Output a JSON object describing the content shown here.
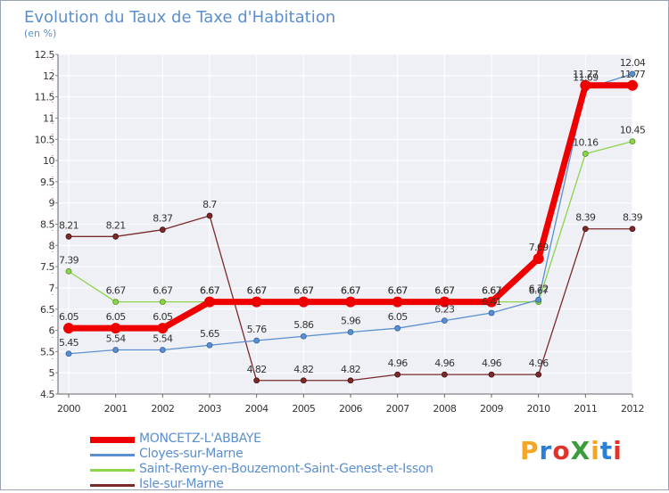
{
  "logo": {
    "text": "ProXiti",
    "letters": [
      "P",
      "r",
      "o",
      "X",
      "i",
      "t",
      "i"
    ],
    "letter_colors": [
      "#f5a623",
      "#2b7fd6",
      "#e0342b",
      "#3a9c3a",
      "#f5a623",
      "#2b7fd6",
      "#e0342b"
    ]
  },
  "chart_data": {
    "type": "line",
    "title": "Evolution du Taux de Taxe d'Habitation",
    "subtitle": "(en %)",
    "x": [
      "2000",
      "2001",
      "2002",
      "2003",
      "2004",
      "2005",
      "2006",
      "2007",
      "2008",
      "2009",
      "2010",
      "2011",
      "2012"
    ],
    "ylim": [
      4.5,
      12.5
    ],
    "yticks": [
      "4.5",
      "5",
      "5.5",
      "6",
      "6.5",
      "7",
      "7.5",
      "8",
      "8.5",
      "9",
      "9.5",
      "10",
      "10.5",
      "11",
      "11.5",
      "12",
      "12.5"
    ],
    "grid": true,
    "legend_position": "bottom-left",
    "series": [
      {
        "name": "MONCETZ-L'ABBAYE",
        "color": "#ee0000",
        "values": [
          6.05,
          6.05,
          6.05,
          6.67,
          6.67,
          6.67,
          6.67,
          6.67,
          6.67,
          6.67,
          7.69,
          11.77,
          11.77
        ],
        "labels": [
          "6.05",
          "6.05",
          "6.05",
          "6.67",
          "6.67",
          "6.67",
          "6.67",
          "6.67",
          "6.67",
          "6.67",
          "7.69",
          "11.77",
          "11.77"
        ]
      },
      {
        "name": "Cloyes-sur-Marne",
        "color": "#5b8fcf",
        "values": [
          5.45,
          5.54,
          5.54,
          5.65,
          5.76,
          5.86,
          5.96,
          6.05,
          6.23,
          6.41,
          6.72,
          11.69,
          12.04
        ],
        "labels": [
          "5.45",
          "5.54",
          "5.54",
          "5.65",
          "5.76",
          "5.86",
          "5.96",
          "6.05",
          "6.23",
          "6.41",
          "6.72",
          "11.69",
          "12.04"
        ]
      },
      {
        "name": "Saint-Remy-en-Bouzemont-Saint-Genest-et-Isson",
        "color": "#8cd44a",
        "values": [
          7.39,
          6.67,
          6.67,
          6.67,
          6.67,
          6.67,
          6.67,
          6.67,
          6.67,
          6.67,
          6.67,
          10.16,
          10.45
        ],
        "labels": [
          "7.39",
          "6.67",
          "6.67",
          "6.67",
          "6.67",
          "6.67",
          "6.67",
          "6.67",
          "6.67",
          "6.67",
          "6.67",
          "10.16",
          "10.45"
        ]
      },
      {
        "name": "Isle-sur-Marne",
        "color": "#7b2a2a",
        "values": [
          8.21,
          8.21,
          8.37,
          8.7,
          4.82,
          4.82,
          4.82,
          4.96,
          4.96,
          4.96,
          4.96,
          8.39,
          8.39
        ],
        "labels": [
          "8.21",
          "8.21",
          "8.37",
          "8.7",
          "4.82",
          "4.82",
          "4.82",
          "4.96",
          "4.96",
          "4.96",
          "4.96",
          "8.39",
          "8.39"
        ]
      }
    ]
  }
}
